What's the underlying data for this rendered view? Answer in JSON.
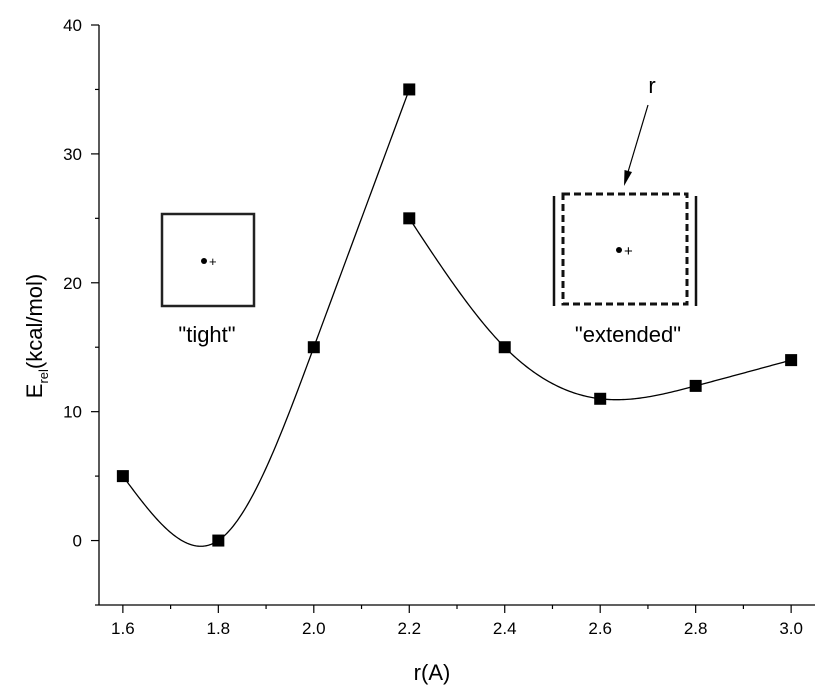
{
  "chart_data": {
    "type": "scatter",
    "title": "",
    "xlabel": "r(A)",
    "ylabel": "E",
    "ylabel_sub": "rel",
    "ylabel_rest": "(kcal/mol)",
    "xlim": [
      1.55,
      3.05
    ],
    "ylim": [
      -5,
      40
    ],
    "xticks": [
      "1.6",
      "1.8",
      "2.0",
      "2.2",
      "2.4",
      "2.6",
      "2.8",
      "3.0"
    ],
    "xtick_values": [
      1.6,
      1.8,
      2.0,
      2.2,
      2.4,
      2.6,
      2.8,
      3.0
    ],
    "yticks": [
      "0",
      "10",
      "20",
      "30",
      "40"
    ],
    "ytick_values": [
      0,
      10,
      20,
      30,
      40
    ],
    "grid": false,
    "series": [
      {
        "x": [
          1.6,
          1.8,
          2.0,
          2.2
        ],
        "y": [
          5,
          0,
          15,
          35
        ],
        "marker": "square",
        "line": "smooth"
      },
      {
        "x": [
          2.2,
          2.4,
          2.6,
          2.8,
          3.0
        ],
        "y": [
          25,
          15,
          11,
          12,
          14
        ],
        "marker": "square",
        "line": "smooth"
      }
    ],
    "annotations": [
      {
        "label": "\"tight\"",
        "style": "solid-box"
      },
      {
        "label": "\"extended\"",
        "style": "dashed-box",
        "arrow_label": "r"
      }
    ]
  }
}
